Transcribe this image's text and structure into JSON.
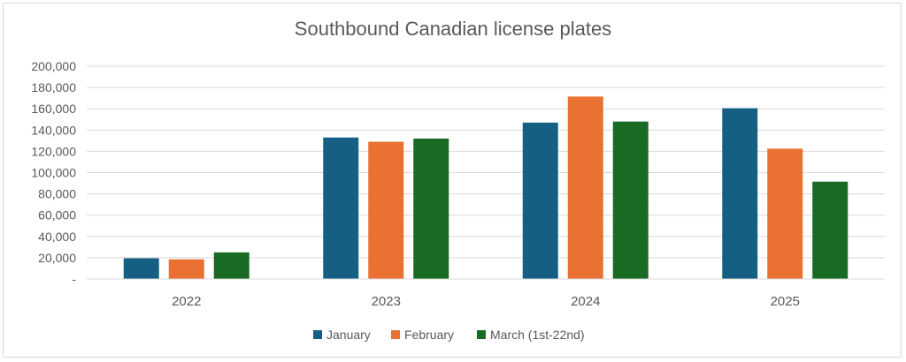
{
  "chart_data": {
    "type": "bar",
    "title": "Southbound Canadian license plates",
    "categories": [
      "2022",
      "2023",
      "2024",
      "2025"
    ],
    "series": [
      {
        "name": "January",
        "color": "#156082",
        "values": [
          19500,
          133000,
          147000,
          160500
        ]
      },
      {
        "name": "February",
        "color": "#E97132",
        "values": [
          18500,
          129000,
          171500,
          122500
        ]
      },
      {
        "name": "March (1st-22nd)",
        "color": "#196B24",
        "values": [
          25000,
          132000,
          148000,
          91500
        ]
      }
    ],
    "ylim": [
      0,
      200000
    ],
    "yticks": [
      0,
      20000,
      40000,
      60000,
      80000,
      100000,
      120000,
      140000,
      160000,
      180000,
      200000
    ],
    "ytick_labels": [
      "-",
      "20,000",
      "40,000",
      "60,000",
      "80,000",
      "100,000",
      "120,000",
      "140,000",
      "160,000",
      "180,000",
      "200,000"
    ],
    "grid": true,
    "legend_position": "bottom"
  }
}
